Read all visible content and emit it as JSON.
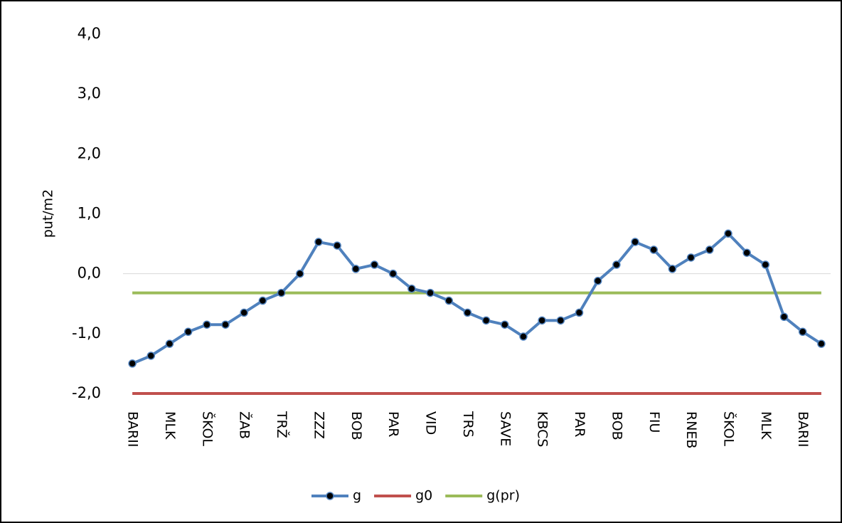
{
  "chart_data": {
    "type": "line",
    "y_label": "put/m2",
    "categories": [
      "BARII",
      null,
      "MLK",
      null,
      "ŠKOL",
      null,
      "ŽAB",
      null,
      "TRŽ",
      null,
      "ZZZ",
      null,
      "BOB",
      null,
      "PAR",
      null,
      "VID",
      null,
      "TRS",
      null,
      "SAVE",
      null,
      "KBCS",
      null,
      "PAR",
      null,
      "BOB",
      null,
      "FIU",
      null,
      "RNEB",
      null,
      "ŠKOL",
      null,
      "MLK",
      null,
      "BARII",
      null
    ],
    "series": [
      {
        "name": "g",
        "color": "#4f81bd",
        "marker": true,
        "values": [
          -1.5,
          -1.37,
          -1.17,
          -0.97,
          -0.85,
          -0.85,
          -0.65,
          -0.45,
          -0.32,
          0.0,
          0.53,
          0.47,
          0.08,
          0.15,
          0.0,
          -0.25,
          -0.32,
          -0.45,
          -0.65,
          -0.78,
          -0.85,
          -1.05,
          -0.78,
          -0.78,
          -0.65,
          -0.12,
          0.15,
          0.53,
          0.4,
          0.08,
          0.27,
          0.4,
          0.67,
          0.35,
          0.15,
          -0.72,
          -0.97,
          -1.17
        ]
      },
      {
        "name": "g0",
        "color": "#c0504d",
        "marker": false,
        "values": [
          -2.0,
          -2.0,
          -2.0,
          -2.0,
          -2.0,
          -2.0,
          -2.0,
          -2.0,
          -2.0,
          -2.0,
          -2.0,
          -2.0,
          -2.0,
          -2.0,
          -2.0,
          -2.0,
          -2.0,
          -2.0,
          -2.0,
          -2.0,
          -2.0,
          -2.0,
          -2.0,
          -2.0,
          -2.0,
          -2.0,
          -2.0,
          -2.0,
          -2.0,
          -2.0,
          -2.0,
          -2.0,
          -2.0,
          -2.0,
          -2.0,
          -2.0,
          -2.0,
          -2.0
        ]
      },
      {
        "name": "g(pr)",
        "color": "#9bbb59",
        "marker": false,
        "values": [
          -0.32,
          -0.32,
          -0.32,
          -0.32,
          -0.32,
          -0.32,
          -0.32,
          -0.32,
          -0.32,
          -0.32,
          -0.32,
          -0.32,
          -0.32,
          -0.32,
          -0.32,
          -0.32,
          -0.32,
          -0.32,
          -0.32,
          -0.32,
          -0.32,
          -0.32,
          -0.32,
          -0.32,
          -0.32,
          -0.32,
          -0.32,
          -0.32,
          -0.32,
          -0.32,
          -0.32,
          -0.32,
          -0.32,
          -0.32,
          -0.32,
          -0.32,
          -0.32,
          -0.32
        ]
      }
    ],
    "ylim": [
      -2.0,
      4.0
    ],
    "yticks": [
      {
        "value": -2.0,
        "label": "-2,0"
      },
      {
        "value": -1.0,
        "label": "-1,0"
      },
      {
        "value": 0.0,
        "label": "0,0"
      },
      {
        "value": 1.0,
        "label": "1,0"
      },
      {
        "value": 2.0,
        "label": "2,0"
      },
      {
        "value": 3.0,
        "label": "3,0"
      },
      {
        "value": 4.0,
        "label": "4,0"
      }
    ],
    "grid": false,
    "legend": "bottom"
  }
}
